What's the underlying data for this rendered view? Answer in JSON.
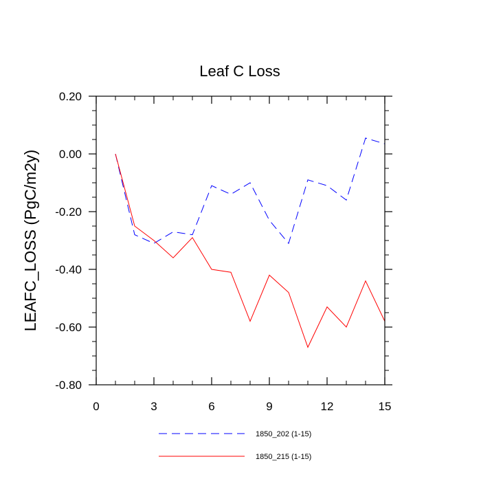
{
  "chart_data": {
    "type": "line",
    "title": "Leaf C Loss",
    "xlabel": "",
    "ylabel": "LEAFC_LOSS  (PgC/m2y)",
    "xlim": [
      0,
      15
    ],
    "ylim": [
      -0.8,
      0.2
    ],
    "x_ticks": [
      0,
      3,
      6,
      9,
      12,
      15
    ],
    "x_tick_labels": [
      "0",
      "3",
      "6",
      "9",
      "12",
      "15"
    ],
    "y_ticks": [
      0.2,
      0.0,
      -0.2,
      -0.4,
      -0.6,
      -0.8
    ],
    "y_tick_labels": [
      "0.20",
      "0.00",
      "-0.20",
      "-0.40",
      "-0.60",
      "-0.80"
    ],
    "x": [
      1,
      2,
      3,
      4,
      5,
      6,
      7,
      8,
      9,
      10,
      11,
      12,
      13,
      14,
      15
    ],
    "series": [
      {
        "name": "1850_202 (1-15)",
        "color": "#0000ff",
        "dash": "dashed",
        "values": [
          0.0,
          -0.28,
          -0.31,
          -0.27,
          -0.28,
          -0.11,
          -0.14,
          -0.1,
          -0.23,
          -0.31,
          -0.09,
          -0.11,
          -0.16,
          0.055,
          0.035
        ]
      },
      {
        "name": "1850_215 (1-15)",
        "color": "#ff0000",
        "dash": "solid",
        "values": [
          0.0,
          -0.25,
          -0.3,
          -0.36,
          -0.29,
          -0.4,
          -0.41,
          -0.58,
          -0.42,
          -0.48,
          -0.67,
          -0.53,
          -0.6,
          -0.44,
          -0.58
        ]
      }
    ],
    "legend": {
      "placement": "bottom",
      "entries": [
        "1850_202 (1-15)",
        "1850_215 (1-15)"
      ]
    }
  }
}
